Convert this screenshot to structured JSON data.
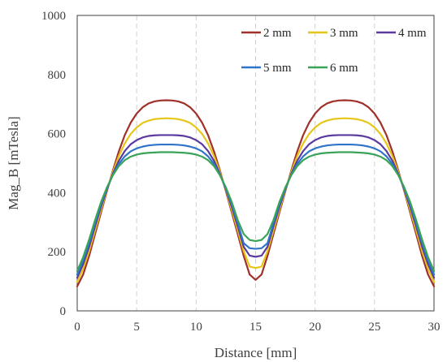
{
  "chart_data": {
    "type": "line",
    "title": "",
    "xlabel": "Distance [mm]",
    "ylabel": "Mag_B [mTesla]",
    "xlim": [
      0,
      30
    ],
    "ylim": [
      0,
      1000
    ],
    "xticks": [
      0,
      5,
      10,
      15,
      20,
      25,
      30
    ],
    "yticks": [
      0,
      200,
      400,
      600,
      800,
      1000
    ],
    "grid": "vertical dashed",
    "legend_position": "top-right",
    "x": [
      0,
      0.5,
      1,
      1.5,
      2,
      2.5,
      3,
      3.5,
      4,
      4.5,
      5,
      5.5,
      6,
      6.5,
      7,
      7.5,
      8,
      8.5,
      9,
      9.5,
      10,
      10.5,
      11,
      11.5,
      12,
      12.5,
      13,
      13.5,
      14,
      14.5,
      15,
      15.5,
      16,
      16.5,
      17,
      17.5,
      18,
      18.5,
      19,
      19.5,
      20,
      20.5,
      21,
      21.5,
      22,
      22.5,
      23,
      23.5,
      24,
      24.5,
      25,
      25.5,
      26,
      26.5,
      27,
      27.5,
      28,
      28.5,
      29,
      29.5,
      30
    ],
    "series": [
      {
        "name": "2 mm",
        "color": "#A0302A",
        "values": [
          83,
          123,
          186,
          260,
          333,
          405,
          475,
          540,
          595,
          637,
          668,
          689,
          702,
          709,
          712,
          713,
          712,
          709,
          702,
          689,
          668,
          637,
          595,
          540,
          475,
          405,
          333,
          260,
          186,
          123,
          105,
          123,
          186,
          260,
          333,
          405,
          475,
          540,
          595,
          637,
          668,
          689,
          702,
          709,
          712,
          713,
          712,
          709,
          702,
          689,
          668,
          637,
          595,
          540,
          475,
          405,
          333,
          260,
          186,
          123,
          83
        ]
      },
      {
        "name": "3 mm",
        "color": "#E6C619",
        "values": [
          98,
          142,
          202,
          272,
          342,
          408,
          470,
          524,
          567,
          599,
          621,
          636,
          644,
          649,
          651,
          652,
          651,
          649,
          644,
          636,
          621,
          599,
          567,
          524,
          470,
          408,
          342,
          272,
          202,
          150,
          145,
          150,
          202,
          272,
          342,
          408,
          470,
          524,
          567,
          599,
          621,
          636,
          644,
          649,
          651,
          652,
          651,
          649,
          644,
          636,
          621,
          599,
          567,
          524,
          470,
          408,
          342,
          272,
          202,
          142,
          98
        ]
      },
      {
        "name": "4 mm",
        "color": "#5B3AA0",
        "values": [
          112,
          158,
          217,
          286,
          352,
          411,
          464,
          508,
          541,
          564,
          578,
          587,
          592,
          594,
          595,
          595,
          595,
          594,
          592,
          587,
          578,
          564,
          541,
          508,
          464,
          411,
          352,
          286,
          217,
          187,
          183,
          187,
          217,
          286,
          352,
          411,
          464,
          508,
          541,
          564,
          578,
          587,
          592,
          594,
          595,
          595,
          595,
          594,
          592,
          587,
          578,
          564,
          541,
          508,
          464,
          411,
          352,
          286,
          217,
          158,
          112
        ]
      },
      {
        "name": "5 mm",
        "color": "#2E75C8",
        "values": [
          123,
          170,
          229,
          296,
          360,
          414,
          461,
          497,
          523,
          540,
          550,
          556,
          560,
          562,
          563,
          563,
          563,
          562,
          560,
          556,
          550,
          540,
          523,
          497,
          461,
          414,
          360,
          296,
          229,
          212,
          210,
          212,
          229,
          296,
          360,
          414,
          461,
          497,
          523,
          540,
          550,
          556,
          560,
          562,
          563,
          563,
          563,
          562,
          560,
          556,
          550,
          540,
          523,
          497,
          461,
          414,
          360,
          296,
          229,
          170,
          123
        ]
      },
      {
        "name": "6 mm",
        "color": "#3AA357",
        "values": [
          135,
          182,
          241,
          307,
          368,
          418,
          459,
          490,
          510,
          522,
          529,
          533,
          535,
          536,
          537,
          537,
          537,
          536,
          535,
          533,
          529,
          522,
          510,
          490,
          459,
          418,
          368,
          307,
          260,
          240,
          236,
          240,
          260,
          307,
          368,
          418,
          459,
          490,
          510,
          522,
          529,
          533,
          535,
          536,
          537,
          537,
          537,
          536,
          535,
          533,
          529,
          522,
          510,
          490,
          459,
          418,
          368,
          307,
          241,
          182,
          135
        ]
      }
    ]
  }
}
